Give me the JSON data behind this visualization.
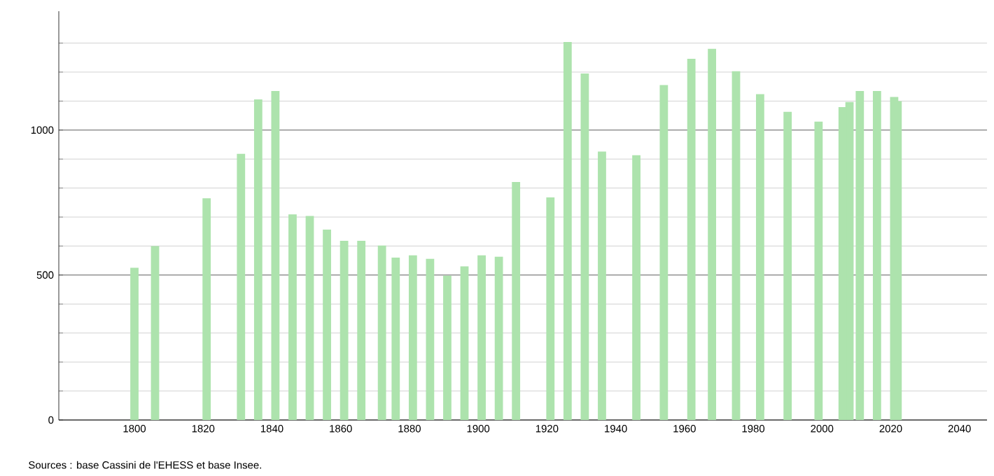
{
  "chart_data": {
    "type": "bar",
    "color": "#ade3ad",
    "x": [
      1800,
      1806,
      1821,
      1831,
      1836,
      1841,
      1846,
      1851,
      1856,
      1861,
      1866,
      1872,
      1876,
      1881,
      1886,
      1891,
      1896,
      1901,
      1906,
      1911,
      1921,
      1926,
      1931,
      1936,
      1946,
      1954,
      1962,
      1968,
      1975,
      1982,
      1990,
      1999,
      2006,
      2008,
      2011,
      2016,
      2021,
      2022
    ],
    "values": [
      525,
      600,
      765,
      918,
      1106,
      1135,
      709,
      704,
      657,
      618,
      618,
      602,
      560,
      568,
      556,
      498,
      530,
      568,
      563,
      821,
      768,
      1304,
      1195,
      926,
      913,
      1155,
      1246,
      1280,
      1203,
      1124,
      1063,
      1029,
      1079,
      1097,
      1135,
      1135,
      1114,
      1100
    ],
    "xlim": [
      1778,
      2048
    ],
    "ylim": [
      0,
      1410
    ],
    "xticks": [
      1800,
      1820,
      1840,
      1860,
      1880,
      1900,
      1920,
      1940,
      1960,
      1980,
      2000,
      2020,
      2040
    ],
    "yticks": [
      0,
      {
        "value": 100,
        "label": null
      },
      {
        "value": 200,
        "label": null
      },
      {
        "value": 300,
        "label": null
      },
      {
        "value": 400,
        "label": null
      },
      500,
      {
        "value": 600,
        "label": null
      },
      {
        "value": 700,
        "label": null
      },
      {
        "value": 800,
        "label": null
      },
      {
        "value": 900,
        "label": null
      },
      1000,
      {
        "value": 1100,
        "label": null
      },
      {
        "value": 1200,
        "label": null
      },
      {
        "value": 1300,
        "label": null
      }
    ],
    "grid": "y",
    "annotations": [
      "Sources : base Cassini de l'EHESS et base Insee."
    ]
  }
}
